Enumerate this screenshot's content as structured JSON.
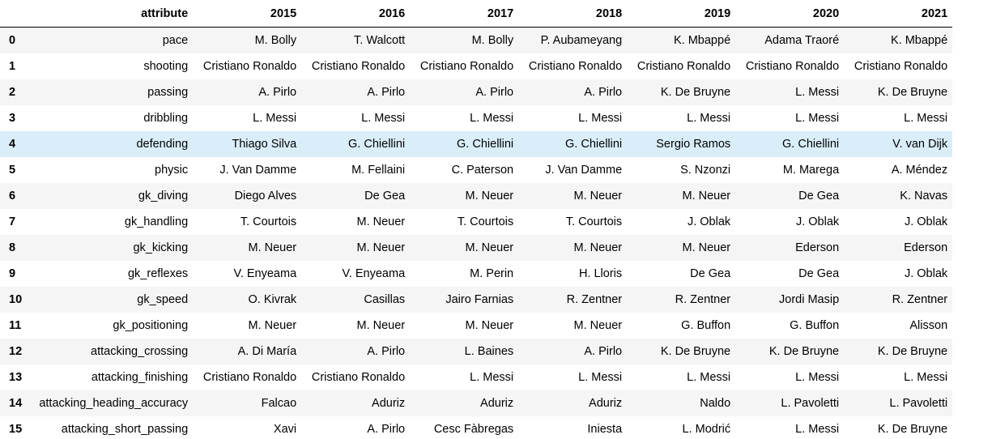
{
  "table": {
    "headers": [
      "attribute",
      "2015",
      "2016",
      "2017",
      "2018",
      "2019",
      "2020",
      "2021"
    ],
    "rows": [
      {
        "index": "0",
        "attribute": "pace",
        "values": [
          "M. Bolly",
          "T. Walcott",
          "M. Bolly",
          "P. Aubameyang",
          "K. Mbappé",
          "Adama Traoré",
          "K. Mbappé"
        ]
      },
      {
        "index": "1",
        "attribute": "shooting",
        "values": [
          "Cristiano Ronaldo",
          "Cristiano Ronaldo",
          "Cristiano Ronaldo",
          "Cristiano Ronaldo",
          "Cristiano Ronaldo",
          "Cristiano Ronaldo",
          "Cristiano Ronaldo"
        ]
      },
      {
        "index": "2",
        "attribute": "passing",
        "values": [
          "A. Pirlo",
          "A. Pirlo",
          "A. Pirlo",
          "A. Pirlo",
          "K. De Bruyne",
          "L. Messi",
          "K. De Bruyne"
        ]
      },
      {
        "index": "3",
        "attribute": "dribbling",
        "values": [
          "L. Messi",
          "L. Messi",
          "L. Messi",
          "L. Messi",
          "L. Messi",
          "L. Messi",
          "L. Messi"
        ]
      },
      {
        "index": "4",
        "attribute": "defending",
        "values": [
          "Thiago Silva",
          "G. Chiellini",
          "G. Chiellini",
          "G. Chiellini",
          "Sergio Ramos",
          "G. Chiellini",
          "V. van Dijk"
        ]
      },
      {
        "index": "5",
        "attribute": "physic",
        "values": [
          "J. Van Damme",
          "M. Fellaini",
          "C. Paterson",
          "J. Van Damme",
          "S. Nzonzi",
          "M. Marega",
          "A. Méndez"
        ]
      },
      {
        "index": "6",
        "attribute": "gk_diving",
        "values": [
          "Diego Alves",
          "De Gea",
          "M. Neuer",
          "M. Neuer",
          "M. Neuer",
          "De Gea",
          "K. Navas"
        ]
      },
      {
        "index": "7",
        "attribute": "gk_handling",
        "values": [
          "T. Courtois",
          "M. Neuer",
          "T. Courtois",
          "T. Courtois",
          "J. Oblak",
          "J. Oblak",
          "J. Oblak"
        ]
      },
      {
        "index": "8",
        "attribute": "gk_kicking",
        "values": [
          "M. Neuer",
          "M. Neuer",
          "M. Neuer",
          "M. Neuer",
          "M. Neuer",
          "Ederson",
          "Ederson"
        ]
      },
      {
        "index": "9",
        "attribute": "gk_reflexes",
        "values": [
          "V. Enyeama",
          "V. Enyeama",
          "M. Perin",
          "H. Lloris",
          "De Gea",
          "De Gea",
          "J. Oblak"
        ]
      },
      {
        "index": "10",
        "attribute": "gk_speed",
        "values": [
          "O. Kivrak",
          "Casillas",
          "Jairo Farnias",
          "R. Zentner",
          "R. Zentner",
          "Jordi Masip",
          "R. Zentner"
        ]
      },
      {
        "index": "11",
        "attribute": "gk_positioning",
        "values": [
          "M. Neuer",
          "M. Neuer",
          "M. Neuer",
          "M. Neuer",
          "G. Buffon",
          "G. Buffon",
          "Alisson"
        ]
      },
      {
        "index": "12",
        "attribute": "attacking_crossing",
        "values": [
          "A. Di María",
          "A. Pirlo",
          "L. Baines",
          "A. Pirlo",
          "K. De Bruyne",
          "K. De Bruyne",
          "K. De Bruyne"
        ]
      },
      {
        "index": "13",
        "attribute": "attacking_finishing",
        "values": [
          "Cristiano Ronaldo",
          "Cristiano Ronaldo",
          "L. Messi",
          "L. Messi",
          "L. Messi",
          "L. Messi",
          "L. Messi"
        ]
      },
      {
        "index": "14",
        "attribute": "attacking_heading_accuracy",
        "values": [
          "Falcao",
          "Aduriz",
          "Aduriz",
          "Aduriz",
          "Naldo",
          "L. Pavoletti",
          "L. Pavoletti"
        ]
      },
      {
        "index": "15",
        "attribute": "attacking_short_passing",
        "values": [
          "Xavi",
          "A. Pirlo",
          "Cesc Fàbregas",
          "Iniesta",
          "L. Modrić",
          "L. Messi",
          "K. De Bruyne"
        ]
      }
    ]
  }
}
